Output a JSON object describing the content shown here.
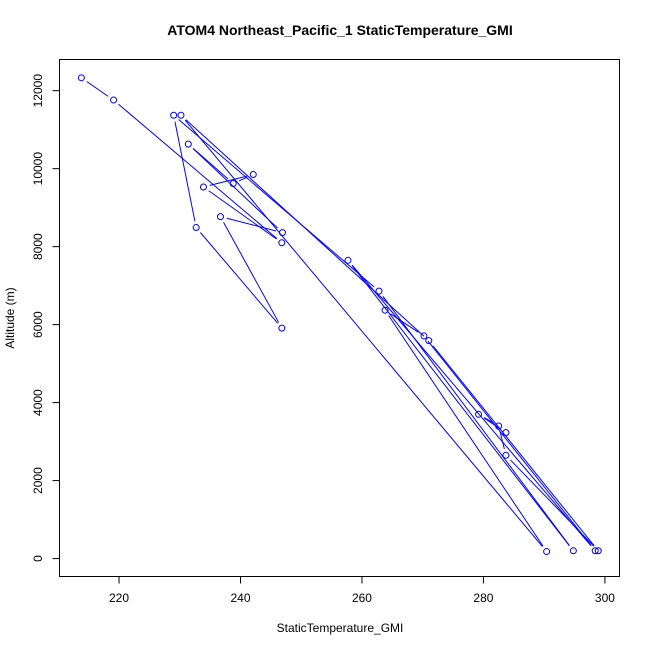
{
  "chart_data": {
    "type": "line",
    "title": "ATOM4 Northeast_Pacific_1 StaticTemperature_GMI",
    "xlabel": "StaticTemperature_GMI",
    "ylabel": "Altitude (m)",
    "xlim": [
      210.2,
      302.4
    ],
    "ylim": [
      -460,
      12800
    ],
    "xticks": [
      220,
      240,
      260,
      280,
      300
    ],
    "yticks": [
      0,
      2000,
      4000,
      6000,
      8000,
      10000,
      12000
    ],
    "grid": false,
    "color": "#0000ff",
    "series": [
      {
        "x": [
          213.8,
          219.1,
          246.8,
          233.9,
          242.1,
          238.8,
          231.4,
          246.9,
          236.7,
          246.8,
          232.7,
          229.0,
          262.8,
          294.8,
          257.7,
          298.4,
          270.2,
          263.8,
          290.4,
          230.2,
          271.0,
          298.9,
          283.7,
          282.5,
          279.2,
          283.7
        ],
        "y": [
          12330,
          11760,
          8100,
          9530,
          9850,
          9620,
          10630,
          8360,
          8770,
          5910,
          8490,
          11370,
          6860,
          200,
          7650,
          200,
          5710,
          6370,
          180,
          11370,
          5590,
          200,
          2650,
          3400,
          3700,
          3230
        ]
      }
    ]
  }
}
